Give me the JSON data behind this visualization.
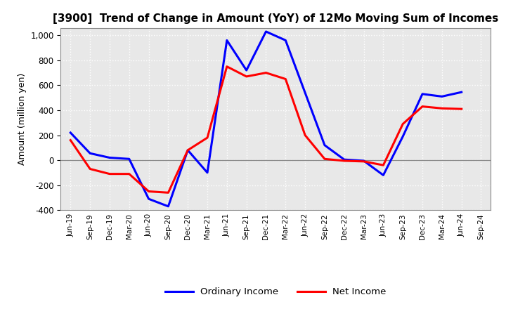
{
  "title": "[3900]  Trend of Change in Amount (YoY) of 12Mo Moving Sum of Incomes",
  "ylabel": "Amount (million yen)",
  "xlabels": [
    "Jun-19",
    "Sep-19",
    "Dec-19",
    "Mar-20",
    "Jun-20",
    "Sep-20",
    "Dec-20",
    "Mar-21",
    "Jun-21",
    "Sep-21",
    "Dec-21",
    "Mar-22",
    "Jun-22",
    "Sep-22",
    "Dec-22",
    "Mar-23",
    "Jun-23",
    "Sep-23",
    "Dec-23",
    "Mar-24",
    "Jun-24",
    "Sep-24"
  ],
  "ordinary_income": [
    220,
    55,
    20,
    10,
    -310,
    -370,
    80,
    -100,
    960,
    720,
    1030,
    960,
    540,
    120,
    5,
    -5,
    -120,
    190,
    530,
    510,
    545,
    null
  ],
  "net_income": [
    160,
    -70,
    -110,
    -110,
    -250,
    -260,
    80,
    180,
    750,
    670,
    700,
    650,
    200,
    10,
    -5,
    -10,
    -40,
    290,
    430,
    415,
    410,
    null
  ],
  "ylim": [
    -400,
    1060
  ],
  "yticks": [
    -400,
    -200,
    0,
    200,
    400,
    600,
    800,
    1000
  ],
  "ordinary_color": "#0000ff",
  "net_color": "#ff0000",
  "background_color": "#ffffff",
  "plot_bg_color": "#e8e8e8",
  "grid_color": "#ffffff",
  "linewidth": 2.2
}
